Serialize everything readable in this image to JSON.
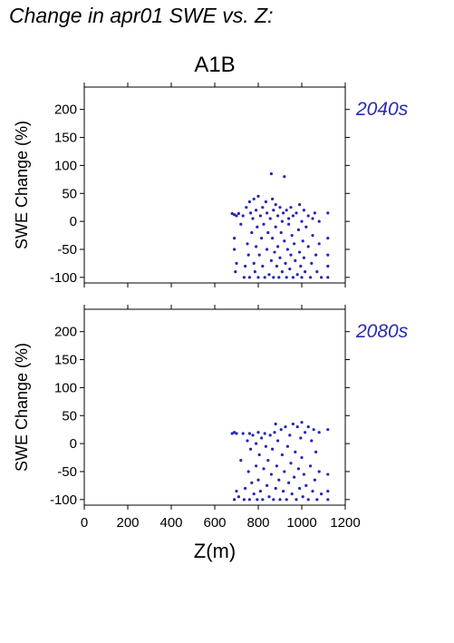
{
  "page": {
    "title": "Change in apr01 SWE vs. Z:",
    "scenario": "A1B"
  },
  "colors": {
    "points": "#2626b8",
    "period_label": "#2a2ab0",
    "axes": "#000000"
  },
  "chart_data": [
    {
      "type": "scatter",
      "period_label": "2040s",
      "xlabel": "",
      "ylabel": "SWE Change (%)",
      "xlim": [
        0,
        1200
      ],
      "ylim": [
        -110,
        240
      ],
      "xticks": [],
      "yticks": [
        -100,
        -50,
        0,
        50,
        100,
        150,
        200
      ],
      "points": [
        [
          680,
          14
        ],
        [
          690,
          12
        ],
        [
          700,
          10
        ],
        [
          710,
          14
        ],
        [
          690,
          -30
        ],
        [
          690,
          -50
        ],
        [
          695,
          -90
        ],
        [
          700,
          -75
        ],
        [
          720,
          -5
        ],
        [
          730,
          10
        ],
        [
          735,
          -100
        ],
        [
          740,
          -80
        ],
        [
          745,
          25
        ],
        [
          750,
          -40
        ],
        [
          755,
          -60
        ],
        [
          760,
          35
        ],
        [
          760,
          -100
        ],
        [
          765,
          15
        ],
        [
          770,
          -20
        ],
        [
          775,
          5
        ],
        [
          780,
          40
        ],
        [
          780,
          -75
        ],
        [
          785,
          -90
        ],
        [
          790,
          20
        ],
        [
          790,
          -45
        ],
        [
          795,
          -10
        ],
        [
          800,
          45
        ],
        [
          800,
          -100
        ],
        [
          805,
          -60
        ],
        [
          810,
          10
        ],
        [
          815,
          -30
        ],
        [
          820,
          25
        ],
        [
          820,
          -80
        ],
        [
          825,
          -5
        ],
        [
          830,
          -100
        ],
        [
          835,
          35
        ],
        [
          840,
          -50
        ],
        [
          840,
          15
        ],
        [
          845,
          -20
        ],
        [
          850,
          -95
        ],
        [
          855,
          5
        ],
        [
          860,
          85
        ],
        [
          860,
          -70
        ],
        [
          865,
          40
        ],
        [
          865,
          -30
        ],
        [
          870,
          20
        ],
        [
          870,
          -100
        ],
        [
          875,
          -55
        ],
        [
          880,
          -10
        ],
        [
          880,
          30
        ],
        [
          885,
          -80
        ],
        [
          890,
          10
        ],
        [
          890,
          -45
        ],
        [
          895,
          -100
        ],
        [
          900,
          25
        ],
        [
          900,
          -65
        ],
        [
          905,
          -20
        ],
        [
          910,
          0
        ],
        [
          910,
          -90
        ],
        [
          915,
          15
        ],
        [
          920,
          80
        ],
        [
          920,
          -35
        ],
        [
          925,
          -75
        ],
        [
          930,
          20
        ],
        [
          930,
          -100
        ],
        [
          935,
          -50
        ],
        [
          940,
          -5
        ],
        [
          940,
          5
        ],
        [
          945,
          -85
        ],
        [
          950,
          25
        ],
        [
          950,
          -60
        ],
        [
          955,
          -25
        ],
        [
          960,
          10
        ],
        [
          960,
          -100
        ],
        [
          965,
          -40
        ],
        [
          970,
          -70
        ],
        [
          975,
          15
        ],
        [
          980,
          -95
        ],
        [
          985,
          -15
        ],
        [
          990,
          30
        ],
        [
          990,
          -55
        ],
        [
          995,
          -80
        ],
        [
          1000,
          0
        ],
        [
          1000,
          -100
        ],
        [
          1005,
          -35
        ],
        [
          1010,
          20
        ],
        [
          1010,
          -65
        ],
        [
          1015,
          -90
        ],
        [
          1020,
          -10
        ],
        [
          1030,
          10
        ],
        [
          1030,
          -45
        ],
        [
          1040,
          -100
        ],
        [
          1045,
          -75
        ],
        [
          1050,
          5
        ],
        [
          1050,
          -25
        ],
        [
          1060,
          15
        ],
        [
          1065,
          -60
        ],
        [
          1070,
          -90
        ],
        [
          1080,
          0
        ],
        [
          1080,
          -40
        ],
        [
          1090,
          -100
        ],
        [
          1120,
          15
        ],
        [
          1120,
          -30
        ],
        [
          1120,
          -60
        ],
        [
          1120,
          -80
        ],
        [
          1120,
          -100
        ]
      ]
    },
    {
      "type": "scatter",
      "period_label": "2080s",
      "xlabel": "Z(m)",
      "ylabel": "SWE Change (%)",
      "xlim": [
        0,
        1200
      ],
      "ylim": [
        -110,
        240
      ],
      "xticks": [
        0,
        200,
        400,
        600,
        800,
        1000,
        1200
      ],
      "yticks": [
        -100,
        -50,
        0,
        50,
        100,
        150,
        200
      ],
      "points": [
        [
          680,
          18
        ],
        [
          690,
          20
        ],
        [
          700,
          18
        ],
        [
          700,
          -85
        ],
        [
          690,
          -100
        ],
        [
          710,
          -95
        ],
        [
          720,
          -30
        ],
        [
          730,
          18
        ],
        [
          735,
          -100
        ],
        [
          740,
          -80
        ],
        [
          750,
          5
        ],
        [
          755,
          -50
        ],
        [
          760,
          18
        ],
        [
          760,
          -100
        ],
        [
          765,
          -10
        ],
        [
          770,
          -70
        ],
        [
          775,
          15
        ],
        [
          780,
          -90
        ],
        [
          790,
          0
        ],
        [
          790,
          -40
        ],
        [
          795,
          -100
        ],
        [
          800,
          20
        ],
        [
          800,
          -65
        ],
        [
          805,
          -20
        ],
        [
          810,
          -85
        ],
        [
          815,
          10
        ],
        [
          820,
          -100
        ],
        [
          825,
          -45
        ],
        [
          830,
          18
        ],
        [
          835,
          -5
        ],
        [
          840,
          -75
        ],
        [
          845,
          -30
        ],
        [
          850,
          -95
        ],
        [
          855,
          15
        ],
        [
          860,
          -55
        ],
        [
          865,
          -10
        ],
        [
          870,
          -100
        ],
        [
          875,
          20
        ],
        [
          880,
          -80
        ],
        [
          880,
          35
        ],
        [
          885,
          -40
        ],
        [
          890,
          5
        ],
        [
          895,
          -65
        ],
        [
          900,
          -100
        ],
        [
          905,
          25
        ],
        [
          910,
          -20
        ],
        [
          915,
          -85
        ],
        [
          920,
          -50
        ],
        [
          925,
          30
        ],
        [
          930,
          -100
        ],
        [
          935,
          -5
        ],
        [
          940,
          -70
        ],
        [
          945,
          15
        ],
        [
          950,
          -35
        ],
        [
          955,
          -90
        ],
        [
          960,
          35
        ],
        [
          965,
          -60
        ],
        [
          970,
          -15
        ],
        [
          975,
          -100
        ],
        [
          980,
          30
        ],
        [
          985,
          -45
        ],
        [
          990,
          -80
        ],
        [
          995,
          10
        ],
        [
          1000,
          38
        ],
        [
          1000,
          -25
        ],
        [
          1005,
          -95
        ],
        [
          1010,
          -55
        ],
        [
          1015,
          20
        ],
        [
          1020,
          -75
        ],
        [
          1030,
          30
        ],
        [
          1030,
          -100
        ],
        [
          1040,
          -40
        ],
        [
          1045,
          5
        ],
        [
          1050,
          -85
        ],
        [
          1055,
          25
        ],
        [
          1060,
          -65
        ],
        [
          1065,
          -15
        ],
        [
          1070,
          -100
        ],
        [
          1080,
          20
        ],
        [
          1080,
          -50
        ],
        [
          1090,
          -90
        ],
        [
          1120,
          25
        ],
        [
          1120,
          -55
        ],
        [
          1120,
          -85
        ],
        [
          1120,
          -100
        ]
      ]
    }
  ]
}
